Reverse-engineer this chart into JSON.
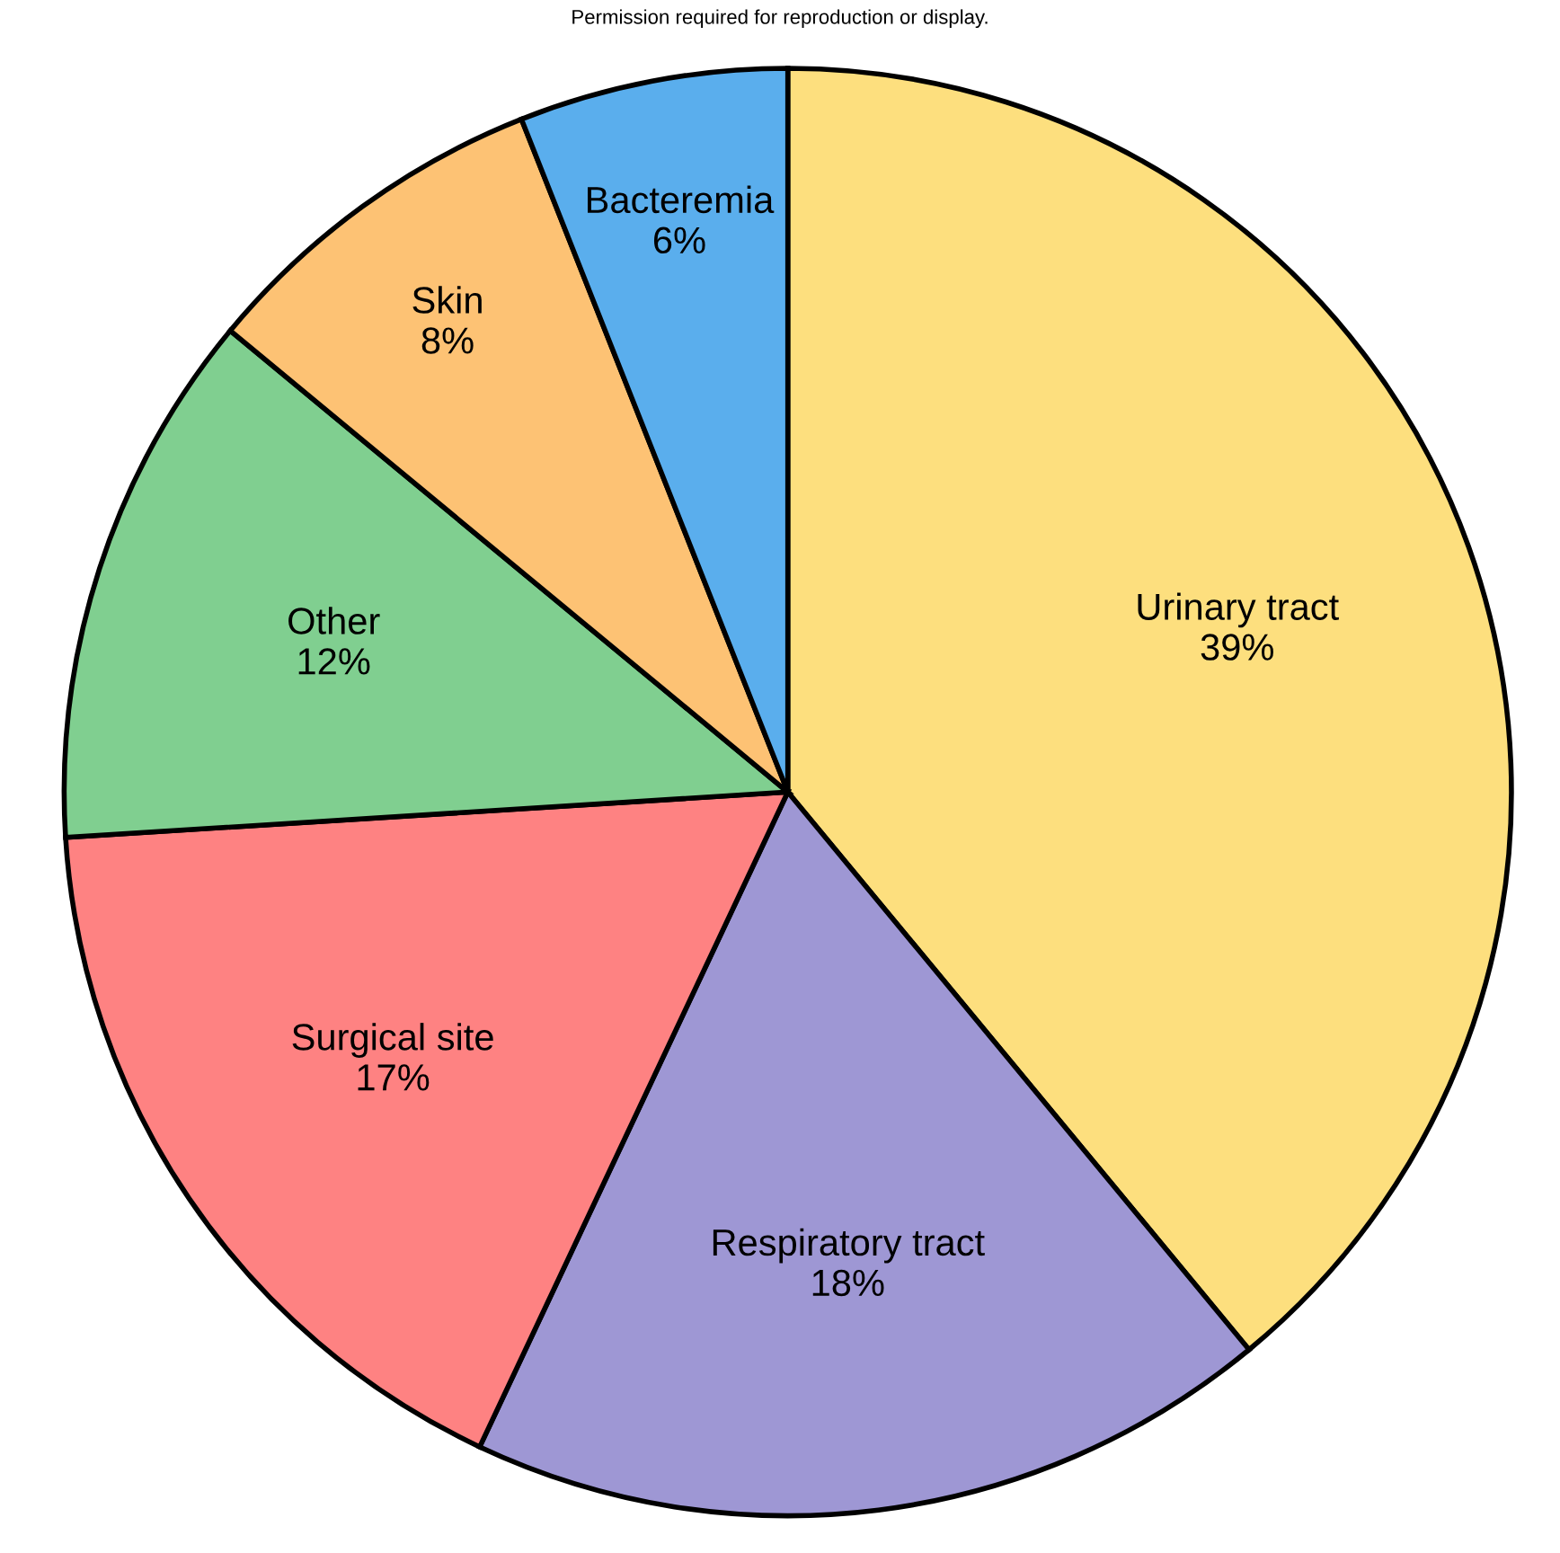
{
  "chart_data": {
    "type": "pie",
    "categories": [
      "Urinary tract",
      "Respiratory tract",
      "Surgical site",
      "Other",
      "Skin",
      "Bacteremia"
    ],
    "values": [
      39,
      18,
      17,
      12,
      8,
      6
    ],
    "value_labels": [
      "39%",
      "18%",
      "17%",
      "12%",
      "8%",
      "6%"
    ],
    "colors": [
      "#fddf7e",
      "#9e97d4",
      "#fe8282",
      "#80cf90",
      "#fdc274",
      "#5aaeed"
    ],
    "annotations": [
      "Permission required for reproduction or display."
    ]
  }
}
